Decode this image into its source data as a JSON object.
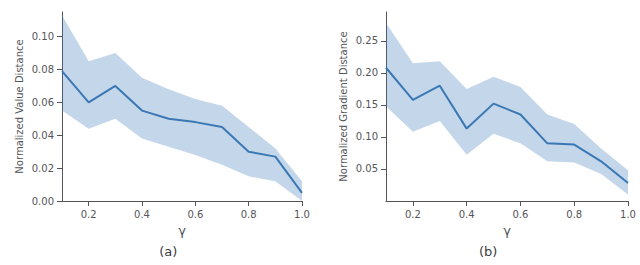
{
  "chart_data": [
    {
      "type": "line",
      "title": "(a)",
      "xlabel": "γ",
      "ylabel": "Normalized Value Distance",
      "x": [
        0.1,
        0.2,
        0.3,
        0.4,
        0.5,
        0.6,
        0.7,
        0.8,
        0.9,
        1.0
      ],
      "values": [
        0.079,
        0.06,
        0.07,
        0.055,
        0.05,
        0.048,
        0.045,
        0.03,
        0.027,
        0.005
      ],
      "upper": [
        0.113,
        0.085,
        0.09,
        0.075,
        0.068,
        0.062,
        0.058,
        0.045,
        0.032,
        0.012
      ],
      "lower": [
        0.055,
        0.044,
        0.05,
        0.038,
        0.033,
        0.028,
        0.022,
        0.015,
        0.012,
        0.0
      ],
      "color": "#3a78b5",
      "xlim": [
        0.1,
        1.0
      ],
      "xticks": [
        0.2,
        0.4,
        0.6,
        0.8,
        {
          "value": 1.0,
          "label": "1.0"
        }
      ],
      "ylim": [
        0.0,
        0.115
      ],
      "yticks": [
        {
          "value": 0.0,
          "label": "0.00"
        },
        0.02,
        0.04,
        0.06,
        0.08,
        {
          "value": 0.1,
          "label": "0.10"
        }
      ],
      "grid": false
    },
    {
      "type": "line",
      "title": "(b)",
      "xlabel": "γ",
      "ylabel": "Normalized Gradient Distance",
      "x": [
        0.1,
        0.2,
        0.3,
        0.4,
        0.5,
        0.6,
        0.7,
        0.8,
        0.9,
        1.0
      ],
      "values": [
        0.208,
        0.158,
        0.18,
        0.113,
        0.152,
        0.135,
        0.09,
        0.088,
        0.062,
        0.028
      ],
      "upper": [
        0.278,
        0.215,
        0.218,
        0.175,
        0.194,
        0.178,
        0.135,
        0.12,
        0.082,
        0.048
      ],
      "lower": [
        0.148,
        0.108,
        0.125,
        0.072,
        0.105,
        0.09,
        0.062,
        0.06,
        0.042,
        0.01
      ],
      "color": "#3a78b5",
      "xlim": [
        0.1,
        1.0
      ],
      "xticks": [
        0.2,
        0.4,
        0.6,
        0.8,
        {
          "value": 1.0,
          "label": "1.0"
        }
      ],
      "ylim": [
        0.0,
        0.295
      ],
      "yticks": [
        0.05,
        {
          "value": 0.1,
          "label": "0.10"
        },
        0.15,
        {
          "value": 0.2,
          "label": "0.20"
        },
        0.25
      ],
      "grid": false
    }
  ]
}
